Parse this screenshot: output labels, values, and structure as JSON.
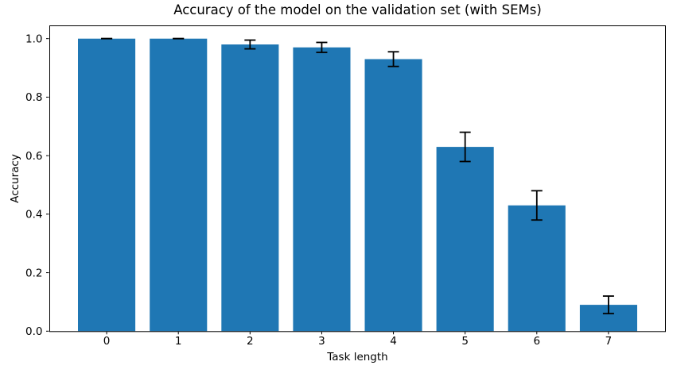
{
  "figure": {
    "background": "#ffffff"
  },
  "chart_data": {
    "type": "bar",
    "title": "Accuracy of the model on the validation set (with SEMs)",
    "xlabel": "Task length",
    "ylabel": "Accuracy",
    "categories": [
      "0",
      "1",
      "2",
      "3",
      "4",
      "5",
      "6",
      "7"
    ],
    "values": [
      1.0,
      1.0,
      0.98,
      0.97,
      0.93,
      0.63,
      0.43,
      0.09
    ],
    "errors": [
      0.0,
      0.0,
      0.015,
      0.017,
      0.025,
      0.05,
      0.05,
      0.03
    ],
    "error_type": "SEM",
    "ytick_labels": [
      "0.0",
      "0.2",
      "0.4",
      "0.6",
      "0.8",
      "1.0"
    ],
    "yticks": [
      0.0,
      0.2,
      0.4,
      0.6,
      0.8,
      1.0
    ],
    "ylim": [
      0,
      1.0425
    ],
    "xlim": [
      -0.8,
      7.8
    ],
    "bar_color": "#1f77b4",
    "error_color": "#000000",
    "axis_color": "#000000",
    "grid": false,
    "legend": null
  }
}
